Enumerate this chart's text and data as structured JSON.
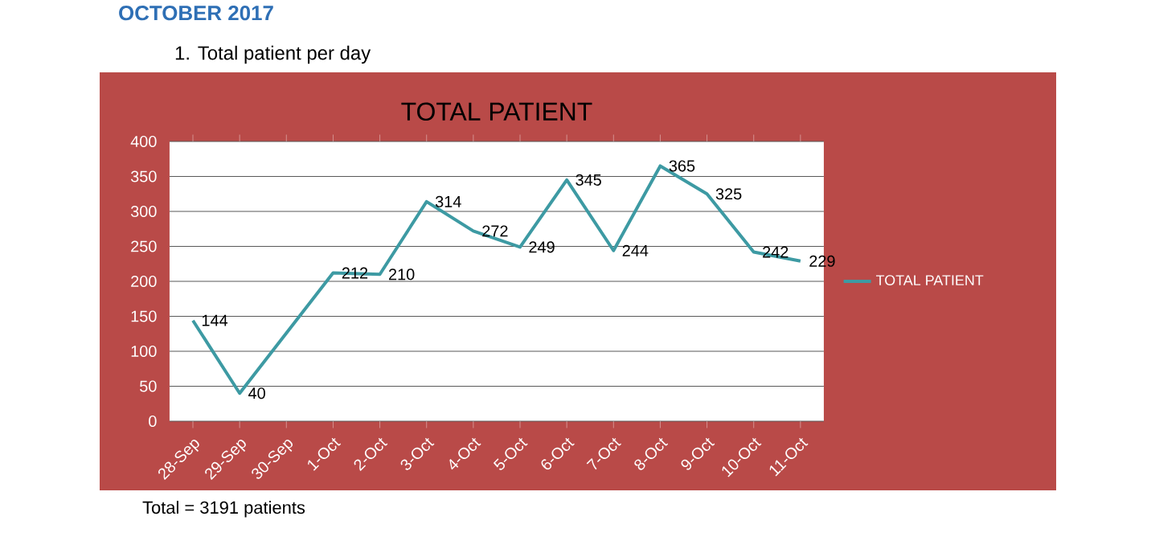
{
  "chart_data": {
    "type": "line",
    "title": "TOTAL PATIENT",
    "subtitle": "1. Total patient per day",
    "annotations": [
      "OCTOBER 2017",
      "Total = 3191 patients"
    ],
    "categories": [
      "28-Sep",
      "29-Sep",
      "30-Sep",
      "1-Oct",
      "2-Oct",
      "3-Oct",
      "4-Oct",
      "5-Oct",
      "6-Oct",
      "7-Oct",
      "8-Oct",
      "9-Oct",
      "10-Oct",
      "11-Oct"
    ],
    "series": [
      {
        "name": "TOTAL PATIENT",
        "color": "#3d9aa3",
        "values": [
          144,
          40,
          null,
          212,
          210,
          314,
          272,
          249,
          345,
          244,
          365,
          325,
          242,
          229
        ]
      }
    ],
    "ylim": [
      0,
      400
    ],
    "yticks": [
      0,
      50,
      100,
      150,
      200,
      250,
      300,
      350,
      400
    ],
    "grid": "y",
    "legend": "right",
    "marker": "none",
    "data_labels": true
  }
}
